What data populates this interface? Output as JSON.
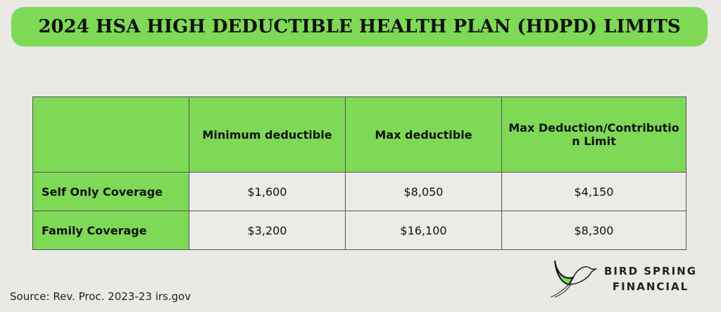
{
  "title": "2024 HSA HIGH DEDUCTIBLE HEALTH PLAN (HDPD) LIMITS",
  "table": {
    "headers": [
      "",
      "Minimum deductible",
      "Max deductible",
      "Max Deduction/Contribution Limit"
    ],
    "rows": [
      {
        "label": "Self Only Coverage",
        "values": [
          "$1,600",
          "$8,050",
          "$4,150"
        ]
      },
      {
        "label": "Family Coverage",
        "values": [
          "$3,200",
          "$16,100",
          "$8,300"
        ]
      }
    ]
  },
  "source": "Source: Rev. Proc. 2023-23 irs.gov",
  "logo": {
    "line1": "BIRD SPRING",
    "line2": "FINANCIAL"
  },
  "colors": {
    "accent": "#7ed957",
    "background": "#ebe9e6"
  }
}
